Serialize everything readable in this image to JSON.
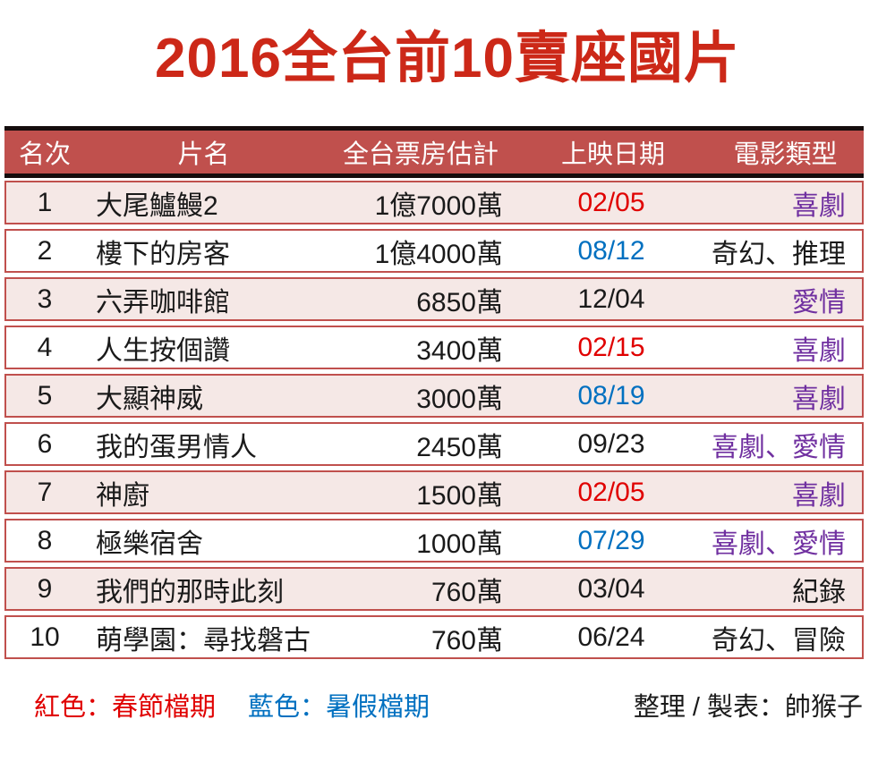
{
  "title": "2016全台前10賣座國片",
  "colors": {
    "title_red": "#cc2818",
    "header_bg": "#c0504d",
    "header_text": "#ffffff",
    "row_pink": "#f5e8e6",
    "row_white": "#ffffff",
    "row_border": "#c0504d",
    "red": "#e00000",
    "blue": "#0070c0",
    "purple": "#7030a0",
    "black": "#1a1a1a"
  },
  "chart_data": {
    "type": "table",
    "title": "2016全台前10賣座國片",
    "columns": [
      "名次",
      "片名",
      "全台票房估計",
      "上映日期",
      "電影類型"
    ],
    "rows": [
      {
        "rank": "1",
        "title": "大尾鱸鰻2",
        "box_office": "1億7000萬",
        "date": "02/05",
        "date_color": "red",
        "genre": "喜劇",
        "genre_color": "purple"
      },
      {
        "rank": "2",
        "title": "樓下的房客",
        "box_office": "1億4000萬",
        "date": "08/12",
        "date_color": "blue",
        "genre": "奇幻、推理",
        "genre_color": "black"
      },
      {
        "rank": "3",
        "title": "六弄咖啡館",
        "box_office": "6850萬",
        "date": "12/04",
        "date_color": "black",
        "genre": "愛情",
        "genre_color": "purple"
      },
      {
        "rank": "4",
        "title": "人生按個讚",
        "box_office": "3400萬",
        "date": "02/15",
        "date_color": "red",
        "genre": "喜劇",
        "genre_color": "purple"
      },
      {
        "rank": "5",
        "title": "大顯神威",
        "box_office": "3000萬",
        "date": "08/19",
        "date_color": "blue",
        "genre": "喜劇",
        "genre_color": "purple"
      },
      {
        "rank": "6",
        "title": "我的蛋男情人",
        "box_office": "2450萬",
        "date": "09/23",
        "date_color": "black",
        "genre": "喜劇、愛情",
        "genre_color": "purple"
      },
      {
        "rank": "7",
        "title": "神廚",
        "box_office": "1500萬",
        "date": "02/05",
        "date_color": "red",
        "genre": "喜劇",
        "genre_color": "purple"
      },
      {
        "rank": "8",
        "title": "極樂宿舍",
        "box_office": "1000萬",
        "date": "07/29",
        "date_color": "blue",
        "genre": "喜劇、愛情",
        "genre_color": "purple"
      },
      {
        "rank": "9",
        "title": "我們的那時此刻",
        "box_office": "760萬",
        "date": "03/04",
        "date_color": "black",
        "genre": "紀錄",
        "genre_color": "black"
      },
      {
        "rank": "10",
        "title": "萌學園：尋找磐古",
        "box_office": "760萬",
        "date": "06/24",
        "date_color": "black",
        "genre": "奇幻、冒險",
        "genre_color": "black"
      }
    ],
    "legend": [
      {
        "label": "紅色：春節檔期",
        "color": "#e00000"
      },
      {
        "label": "藍色：暑假檔期",
        "color": "#0070c0"
      }
    ]
  },
  "footer": {
    "legend_red": "紅色：春節檔期",
    "legend_blue": "藍色：暑假檔期",
    "credit": "整理 / 製表：帥猴子"
  }
}
